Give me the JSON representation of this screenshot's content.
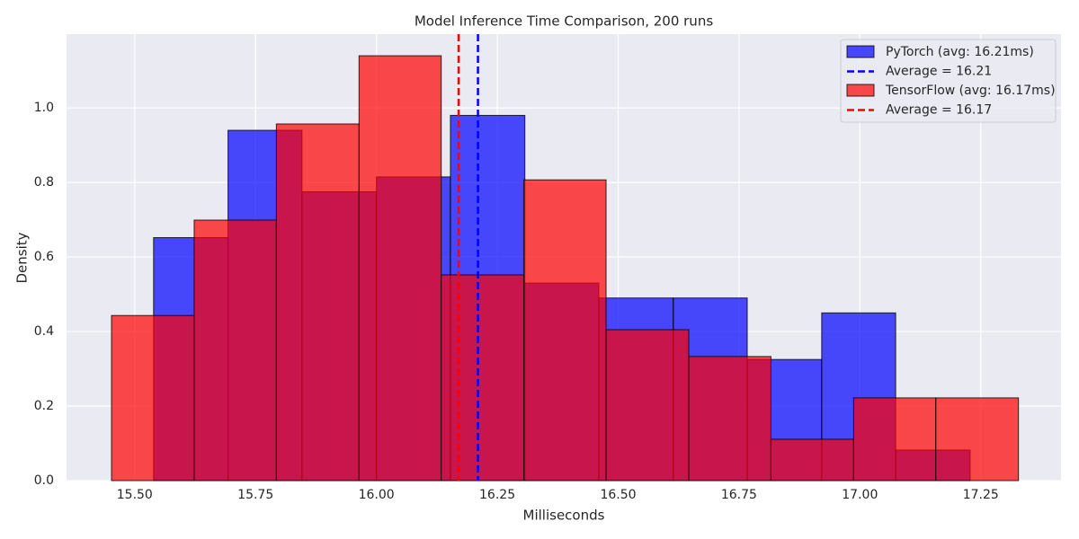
{
  "chart_data": {
    "type": "histogram",
    "title": "Model Inference Time Comparison, 200 runs",
    "xlabel": "Milliseconds",
    "ylabel": "Density",
    "xlim": [
      15.359,
      17.416
    ],
    "ylim": [
      0,
      1.198
    ],
    "xticks": [
      {
        "value": 15.5,
        "label": "15.50"
      },
      {
        "value": 15.75,
        "label": "15.75"
      },
      {
        "value": 16.0,
        "label": "16.00"
      },
      {
        "value": 16.25,
        "label": "16.25"
      },
      {
        "value": 16.5,
        "label": "16.50"
      },
      {
        "value": 16.75,
        "label": "16.75"
      },
      {
        "value": 17.0,
        "label": "17.00"
      },
      {
        "value": 17.25,
        "label": "17.25"
      }
    ],
    "yticks": [
      {
        "value": 0,
        "label": "0.0"
      },
      {
        "value": 0.2,
        "label": "0.2"
      },
      {
        "value": 0.4,
        "label": "0.4"
      },
      {
        "value": 0.6,
        "label": "0.6"
      },
      {
        "value": 0.8,
        "label": "0.8"
      },
      {
        "value": 1.0,
        "label": "1.0"
      }
    ],
    "grid": true,
    "legend": "upper right",
    "series": [
      {
        "name": "PyTorch (avg: 16.21ms)",
        "color": "#0000ff",
        "bins": [
          15.539,
          15.693,
          15.846,
          16.0,
          16.153,
          16.307,
          16.46,
          16.614,
          16.767,
          16.921,
          17.074,
          17.228
        ],
        "values": [
          0.652,
          0.94,
          0.775,
          0.815,
          0.98,
          0.53,
          0.49,
          0.49,
          0.325,
          0.45,
          0.082
        ]
      },
      {
        "name": "TensorFlow (avg: 16.17ms)",
        "color": "#ff0000",
        "bins": [
          15.452,
          15.623,
          15.793,
          15.964,
          16.134,
          16.305,
          16.475,
          16.646,
          16.816,
          16.987,
          17.157,
          17.328
        ],
        "values": [
          0.443,
          0.699,
          0.957,
          1.14,
          0.552,
          0.807,
          0.405,
          0.333,
          0.111,
          0.222,
          0.222
        ]
      }
    ],
    "vlines": [
      {
        "label": "Average = 16.21",
        "x": 16.21,
        "color": "#0000ff"
      },
      {
        "label": "Average = 16.17",
        "x": 16.17,
        "color": "#ff0000"
      }
    ]
  }
}
